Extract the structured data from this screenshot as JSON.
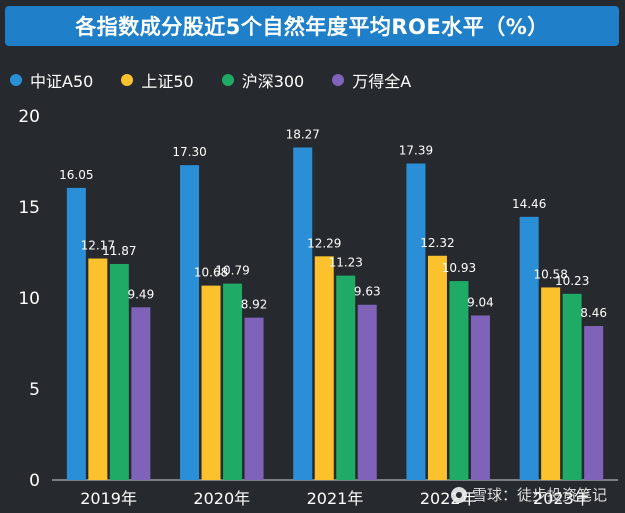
{
  "title": "各指数成分股近5个自然年度平均ROE水平（%）",
  "watermark": "雪球：徒步投资笔记",
  "colors": {
    "background": "#26292e",
    "title_bar": "#1f7fc9"
  },
  "chart_data": {
    "type": "bar",
    "title": "各指数成分股近5个自然年度平均ROE水平（%）",
    "xlabel": "",
    "ylabel": "",
    "ylim": [
      0,
      20
    ],
    "yticks": [
      0,
      5,
      10,
      15,
      20
    ],
    "grid": false,
    "legend_position": "top-left",
    "categories": [
      "2019年",
      "2020年",
      "2021年",
      "2022年",
      "2023年"
    ],
    "series": [
      {
        "name": "中证A50",
        "color": "#2a8fd6",
        "values": [
          16.05,
          17.3,
          18.27,
          17.39,
          14.46
        ],
        "labels": [
          "16.05",
          "17.30",
          "18.27",
          "17.39",
          "14.46"
        ]
      },
      {
        "name": "上证50",
        "color": "#fcc22d",
        "values": [
          12.17,
          10.68,
          12.29,
          12.32,
          10.58
        ],
        "labels": [
          "12.17",
          "10.68",
          "12.29",
          "12.32",
          "10.58"
        ]
      },
      {
        "name": "沪深300",
        "color": "#1faa66",
        "values": [
          11.87,
          10.79,
          11.23,
          10.93,
          10.23
        ],
        "labels": [
          "11.87",
          "10.79",
          "11.23",
          "10.93",
          "10.23"
        ]
      },
      {
        "name": "万得全A",
        "color": "#7e63b8",
        "values": [
          9.49,
          8.92,
          9.63,
          9.04,
          8.46
        ],
        "labels": [
          "9.49",
          "8.92",
          "9.63",
          "9.04",
          "8.46"
        ]
      }
    ]
  }
}
